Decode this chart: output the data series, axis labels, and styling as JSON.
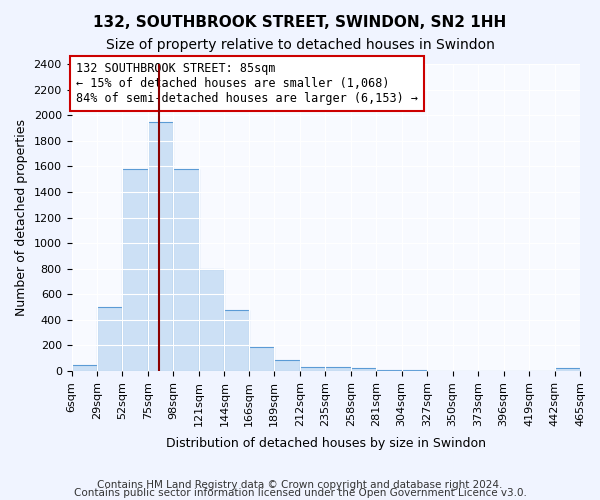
{
  "title": "132, SOUTHBROOK STREET, SWINDON, SN2 1HH",
  "subtitle": "Size of property relative to detached houses in Swindon",
  "xlabel": "Distribution of detached houses by size in Swindon",
  "ylabel": "Number of detached properties",
  "bins": [
    6,
    29,
    52,
    75,
    98,
    121,
    144,
    166,
    189,
    212,
    235,
    258,
    281,
    304,
    327,
    350,
    373,
    396,
    419,
    442,
    465
  ],
  "bin_labels": [
    "6sqm",
    "29sqm",
    "52sqm",
    "75sqm",
    "98sqm",
    "121sqm",
    "144sqm",
    "166sqm",
    "189sqm",
    "212sqm",
    "235sqm",
    "258sqm",
    "281sqm",
    "304sqm",
    "327sqm",
    "350sqm",
    "373sqm",
    "396sqm",
    "419sqm",
    "442sqm",
    "465sqm"
  ],
  "counts": [
    50,
    500,
    1580,
    1950,
    1580,
    800,
    480,
    190,
    90,
    35,
    35,
    25,
    5,
    5,
    2,
    2,
    2,
    2,
    2,
    20
  ],
  "bar_facecolor": "#cce0f5",
  "bar_edgecolor": "#5b9bd5",
  "vline_x": 85,
  "vline_color": "#8b0000",
  "annotation_text": "132 SOUTHBROOK STREET: 85sqm\n← 15% of detached houses are smaller (1,068)\n84% of semi-detached houses are larger (6,153) →",
  "annotation_box_edgecolor": "#cc0000",
  "annotation_box_facecolor": "#ffffff",
  "ylim": [
    0,
    2400
  ],
  "yticks": [
    0,
    200,
    400,
    600,
    800,
    1000,
    1200,
    1400,
    1600,
    1800,
    2000,
    2200,
    2400
  ],
  "footer1": "Contains HM Land Registry data © Crown copyright and database right 2024.",
  "footer2": "Contains public sector information licensed under the Open Government Licence v3.0.",
  "bg_color": "#f0f4ff",
  "plot_bg_color": "#f8faff",
  "title_fontsize": 11,
  "subtitle_fontsize": 10,
  "axis_label_fontsize": 9,
  "tick_fontsize": 8,
  "annotation_fontsize": 8.5,
  "footer_fontsize": 7.5
}
